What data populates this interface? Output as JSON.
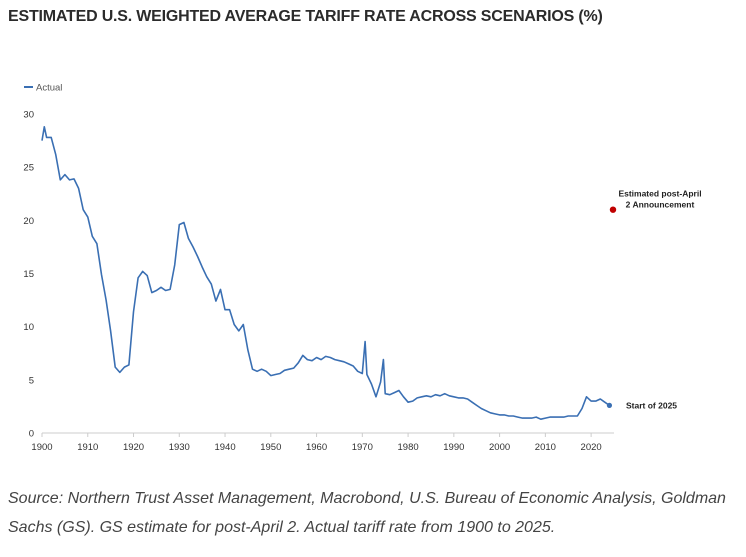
{
  "title": "ESTIMATED U.S. WEIGHTED AVERAGE TARIFF RATE ACROSS SCENARIOS (%)",
  "source": "Source: Northern Trust Asset Management, Macrobond, U.S. Bureau of Economic Analysis, Goldman Sachs (GS). GS estimate for post-April 2. Actual tariff rate from 1900 to 2025.",
  "colors": {
    "actual": "#3a6fb3",
    "estimate": "#c00000",
    "axis": "#cccccc",
    "tick_text": "#333333"
  },
  "chart_data": {
    "type": "line",
    "title": "ESTIMATED U.S. WEIGHTED AVERAGE TARIFF RATE ACROSS SCENARIOS (%)",
    "xlabel": "",
    "ylabel": "",
    "xlim": [
      1900,
      2025
    ],
    "ylim": [
      0,
      30
    ],
    "x_ticks": [
      1900,
      1910,
      1920,
      1930,
      1940,
      1950,
      1960,
      1970,
      1980,
      1990,
      2000,
      2010,
      2020
    ],
    "y_ticks": [
      0,
      5,
      10,
      15,
      20,
      25,
      30
    ],
    "grid": false,
    "legend_position": "top-left",
    "series": [
      {
        "name": "Actual",
        "x": [
          1900,
          1900.5,
          1901,
          1902,
          1903,
          1904,
          1905,
          1906,
          1907,
          1908,
          1909,
          1910,
          1911,
          1912,
          1913,
          1914,
          1915,
          1916,
          1917,
          1918,
          1919,
          1920,
          1921,
          1922,
          1923,
          1924,
          1925,
          1926,
          1927,
          1928,
          1929,
          1930,
          1931,
          1932,
          1933,
          1934,
          1935,
          1936,
          1937,
          1938,
          1939,
          1940,
          1941,
          1942,
          1943,
          1944,
          1945,
          1946,
          1947,
          1948,
          1949,
          1950,
          1951,
          1952,
          1953,
          1954,
          1955,
          1956,
          1957,
          1958,
          1959,
          1960,
          1961,
          1962,
          1963,
          1964,
          1965,
          1966,
          1967,
          1968,
          1969,
          1970,
          1970.6,
          1971,
          1972,
          1973,
          1974,
          1974.6,
          1975,
          1976,
          1977,
          1978,
          1979,
          1980,
          1981,
          1982,
          1983,
          1984,
          1985,
          1986,
          1987,
          1988,
          1989,
          1990,
          1991,
          1992,
          1993,
          1994,
          1995,
          1996,
          1997,
          1998,
          1999,
          2000,
          2001,
          2002,
          2003,
          2004,
          2005,
          2006,
          2007,
          2008,
          2009,
          2010,
          2011,
          2012,
          2013,
          2014,
          2015,
          2016,
          2017,
          2018,
          2019,
          2020,
          2021,
          2022,
          2023,
          2024
        ],
        "values": [
          27.5,
          28.8,
          27.8,
          27.8,
          26.2,
          23.8,
          24.3,
          23.8,
          23.9,
          23.0,
          21.0,
          20.3,
          18.5,
          17.8,
          14.9,
          12.5,
          9.6,
          6.2,
          5.7,
          6.2,
          6.4,
          11.4,
          14.6,
          15.2,
          14.8,
          13.2,
          13.4,
          13.7,
          13.4,
          13.5,
          15.8,
          19.6,
          19.8,
          18.3,
          17.5,
          16.6,
          15.6,
          14.7,
          14.0,
          12.4,
          13.5,
          11.6,
          11.6,
          10.2,
          9.6,
          10.2,
          7.8,
          6.0,
          5.8,
          6.0,
          5.8,
          5.4,
          5.5,
          5.6,
          5.9,
          6.0,
          6.1,
          6.6,
          7.3,
          6.9,
          6.8,
          7.1,
          6.9,
          7.2,
          7.1,
          6.9,
          6.8,
          6.7,
          6.5,
          6.3,
          5.8,
          5.6,
          8.6,
          5.5,
          4.6,
          3.4,
          4.8,
          6.9,
          3.7,
          3.6,
          3.8,
          4.0,
          3.4,
          2.9,
          3.0,
          3.3,
          3.4,
          3.5,
          3.4,
          3.6,
          3.5,
          3.7,
          3.5,
          3.4,
          3.3,
          3.3,
          3.2,
          2.9,
          2.6,
          2.3,
          2.1,
          1.9,
          1.8,
          1.7,
          1.7,
          1.6,
          1.6,
          1.5,
          1.4,
          1.4,
          1.4,
          1.5,
          1.3,
          1.4,
          1.5,
          1.5,
          1.5,
          1.5,
          1.6,
          1.6,
          1.6,
          2.3,
          3.4,
          3.0,
          3.0,
          3.2,
          2.9,
          2.6
        ]
      }
    ],
    "annotations": [
      {
        "label": "Estimated post-April 2 Announcement",
        "x": 2025,
        "y": 21.0
      },
      {
        "label": "Start of 2025",
        "x": 2025,
        "y": 2.6
      }
    ]
  }
}
